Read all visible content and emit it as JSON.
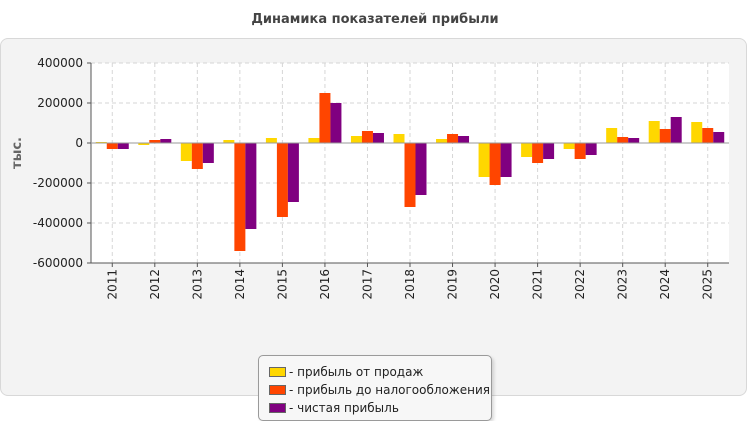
{
  "chart_data": {
    "type": "bar",
    "title": "Динамика показателей прибыли",
    "ylabel": "тыс.",
    "xlabel": "",
    "ylim": [
      -600000,
      400000
    ],
    "yticks": [
      400000,
      200000,
      0,
      -200000,
      -400000,
      -600000
    ],
    "ytick_labels": [
      "400000",
      "200000",
      "0",
      "-200000",
      "-400000",
      "-600000"
    ],
    "grid": true,
    "legend_position": "bottom-center",
    "categories": [
      "2011",
      "2012",
      "2013",
      "2014",
      "2015",
      "2016",
      "2017",
      "2018",
      "2019",
      "2020",
      "2021",
      "2022",
      "2023",
      "2024",
      "2025"
    ],
    "series": [
      {
        "name": "- прибыль от продаж",
        "color": "#ffd700",
        "values": [
          5000,
          -10000,
          -90000,
          15000,
          25000,
          25000,
          35000,
          45000,
          20000,
          -170000,
          -70000,
          -30000,
          75000,
          110000,
          105000
        ]
      },
      {
        "name": "- прибыль до налогообложения",
        "color": "#ff4500",
        "values": [
          -30000,
          15000,
          -130000,
          -540000,
          -370000,
          250000,
          60000,
          -320000,
          45000,
          -210000,
          -100000,
          -80000,
          30000,
          70000,
          75000
        ]
      },
      {
        "name": "- чистая прибыль",
        "color": "#800080",
        "values": [
          -30000,
          20000,
          -100000,
          -430000,
          -295000,
          200000,
          50000,
          -260000,
          35000,
          -170000,
          -80000,
          -60000,
          25000,
          130000,
          55000
        ]
      }
    ]
  }
}
